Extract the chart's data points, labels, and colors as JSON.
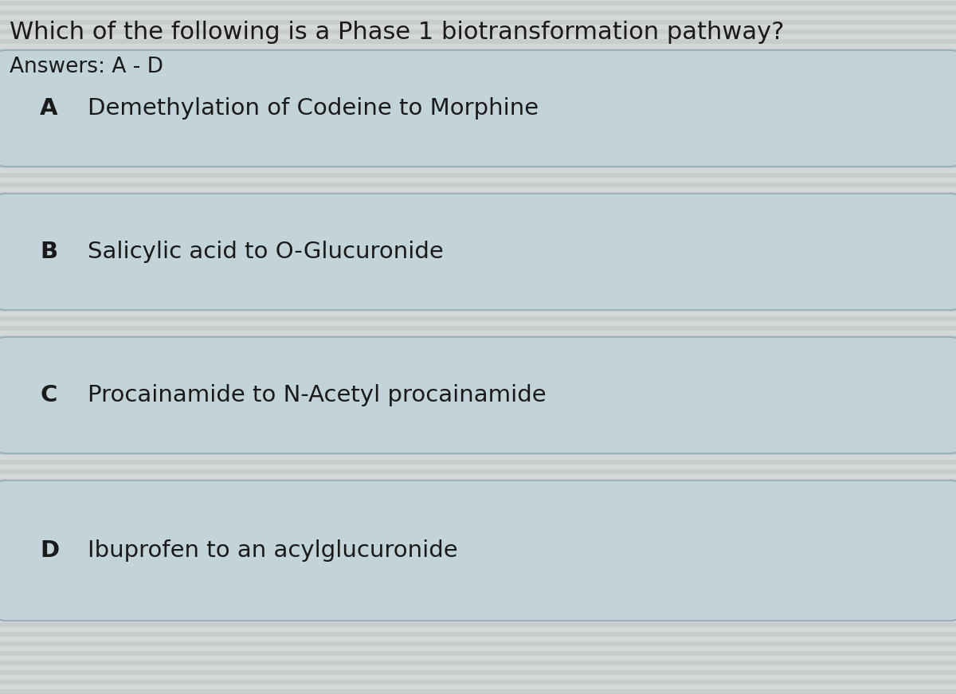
{
  "title": "Which of the following is a Phase 1 biotransformation pathway?",
  "subtitle": "Answers: A - D",
  "options": [
    {
      "letter": "A",
      "text": "Demethylation of Codeine to Morphine"
    },
    {
      "letter": "B",
      "text": "Salicylic acid to O-Glucuronide"
    },
    {
      "letter": "C",
      "text": "Procainamide to N-Acetyl procainamide"
    },
    {
      "letter": "D",
      "text": "Ibuprofen to an acylglucuronide"
    }
  ],
  "background_color": "#d4d8d8",
  "box_fill_color": "#c2d4d8",
  "box_edge_color": "#9ab0b8",
  "stripe_color": "#c8cccc",
  "title_color": "#1a1a1a",
  "text_color": "#1a1a1a",
  "title_fontsize": 22,
  "subtitle_fontsize": 19,
  "option_letter_fontsize": 21,
  "option_text_fontsize": 21
}
